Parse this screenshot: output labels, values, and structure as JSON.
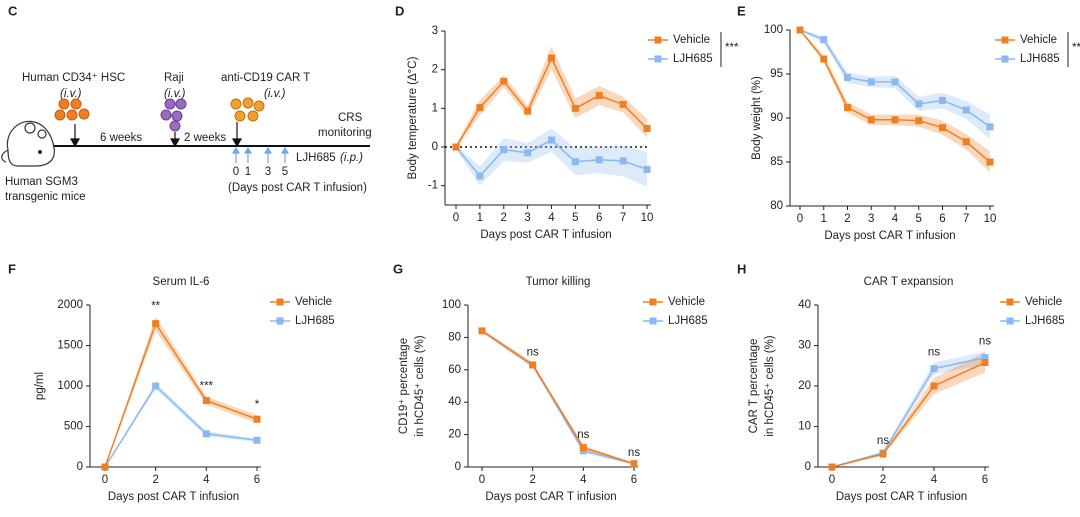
{
  "diagram": {
    "panel_label": "C",
    "steps": [
      {
        "label": "Human CD34⁺ HSC",
        "route": "(i.v.)"
      },
      {
        "label": "Raji",
        "route": "(i.v.)"
      },
      {
        "label": "anti-CD19 CAR T",
        "route": "(i.v.)"
      }
    ],
    "intervals": [
      "6 weeks",
      "2 weeks"
    ],
    "monitoring": [
      "CRS",
      "monitoring"
    ],
    "days": [
      "0",
      "1",
      "3",
      "5"
    ],
    "treatment": "LJH685",
    "treatment_route": "(i.p.)",
    "days_caption": "(Days post CAR T infusion)",
    "mouse": [
      "Human SGM3",
      "transgenic mice"
    ]
  },
  "chart_data": [
    {
      "type": "line",
      "panel_label": "D",
      "xlabel": "Days post CAR T infusion",
      "ylabel": [
        "Body temperature (Δ°C)"
      ],
      "categories": [
        "0",
        "1",
        "2",
        "3",
        "4",
        "5",
        "6",
        "7",
        "10"
      ],
      "ylim": [
        -1.5,
        3
      ],
      "yticks": [
        -1,
        0,
        1,
        2,
        3
      ],
      "reference_line": 0,
      "significance": "***",
      "series": [
        {
          "name": "Vehicle",
          "color": "#f07f24",
          "values": [
            0,
            1.02,
            1.7,
            0.93,
            2.3,
            1.0,
            1.33,
            1.1,
            0.48
          ],
          "errors": [
            0.05,
            0.2,
            0.15,
            0.15,
            0.3,
            0.25,
            0.25,
            0.2,
            0.25
          ]
        },
        {
          "name": "LJH685",
          "color": "#8ab8f0",
          "values": [
            0,
            -0.75,
            -0.07,
            -0.15,
            0.18,
            -0.38,
            -0.33,
            -0.36,
            -0.58
          ],
          "errors": [
            0.05,
            0.25,
            0.3,
            0.25,
            0.3,
            0.35,
            0.35,
            0.4,
            0.45
          ]
        }
      ]
    },
    {
      "type": "line",
      "panel_label": "E",
      "xlabel": "Days post CAR T infusion",
      "ylabel": [
        "Body weight (%)"
      ],
      "categories": [
        "0",
        "1",
        "2",
        "3",
        "4",
        "5",
        "6",
        "7",
        "10"
      ],
      "ylim": [
        80,
        100
      ],
      "yticks": [
        80,
        85,
        90,
        95,
        100
      ],
      "significance": "**",
      "series": [
        {
          "name": "Vehicle",
          "color": "#f07f24",
          "values": [
            100,
            96.7,
            91.2,
            89.8,
            89.8,
            89.7,
            88.9,
            87.3,
            85.0
          ],
          "errors": [
            0.1,
            0.4,
            0.6,
            0.6,
            0.6,
            0.7,
            0.8,
            0.9,
            1.2
          ]
        },
        {
          "name": "LJH685",
          "color": "#8ab8f0",
          "values": [
            100,
            98.9,
            94.6,
            94.1,
            94.1,
            91.6,
            92.0,
            90.9,
            89.0
          ],
          "errors": [
            0.1,
            0.4,
            0.6,
            0.6,
            0.7,
            0.8,
            0.9,
            1.0,
            1.4
          ]
        }
      ]
    },
    {
      "type": "line",
      "panel_label": "F",
      "title": "Serum IL-6",
      "xlabel": "Days post CAR T infusion",
      "ylabel": [
        "pg/ml"
      ],
      "categories": [
        "0",
        "2",
        "4",
        "6"
      ],
      "ylim": [
        0,
        2000
      ],
      "yticks": [
        0,
        500,
        1000,
        1500,
        2000
      ],
      "annotations": [
        null,
        "**",
        "***",
        "*"
      ],
      "series": [
        {
          "name": "Vehicle",
          "color": "#f07f24",
          "values": [
            0,
            1770,
            820,
            590
          ],
          "errors": [
            0,
            90,
            50,
            50
          ]
        },
        {
          "name": "LJH685",
          "color": "#8ab8f0",
          "values": [
            0,
            1000,
            410,
            330
          ],
          "errors": [
            0,
            40,
            35,
            20
          ]
        }
      ]
    },
    {
      "type": "line",
      "panel_label": "G",
      "title": "Tumor killing",
      "xlabel": "Days post CAR T infusion",
      "ylabel": [
        "CD19⁺ percentage",
        "in hCD45⁺ cells (%)"
      ],
      "categories": [
        "0",
        "2",
        "4",
        "6"
      ],
      "ylim": [
        0,
        100
      ],
      "yticks": [
        0,
        20,
        40,
        60,
        80,
        100
      ],
      "annotations": [
        null,
        "ns",
        "ns",
        "ns"
      ],
      "series": [
        {
          "name": "Vehicle",
          "color": "#f07f24",
          "values": [
            84,
            63,
            12,
            2
          ],
          "errors": [
            1,
            1.5,
            1.5,
            0.5
          ]
        },
        {
          "name": "LJH685",
          "color": "#8ab8f0",
          "values": [
            84,
            63,
            10,
            2
          ],
          "errors": [
            1,
            1.5,
            1.5,
            0.5
          ]
        }
      ]
    },
    {
      "type": "line",
      "panel_label": "H",
      "title": "CAR T expansion",
      "xlabel": "Days post CAR T infusion",
      "ylabel": [
        "CAR T percentage",
        "in hCD45⁺ cells (%)"
      ],
      "categories": [
        "0",
        "2",
        "4",
        "6"
      ],
      "ylim": [
        0,
        40
      ],
      "yticks": [
        0,
        10,
        20,
        30,
        40
      ],
      "annotations": [
        null,
        "ns",
        "ns",
        "ns"
      ],
      "series": [
        {
          "name": "Vehicle",
          "color": "#f07f24",
          "values": [
            0,
            3.2,
            20,
            25.8
          ],
          "errors": [
            0,
            0.4,
            2,
            2.5
          ]
        },
        {
          "name": "LJH685",
          "color": "#8ab8f0",
          "values": [
            0,
            3.5,
            24.3,
            27
          ],
          "errors": [
            0,
            0.4,
            1.5,
            1.5
          ]
        }
      ]
    }
  ]
}
